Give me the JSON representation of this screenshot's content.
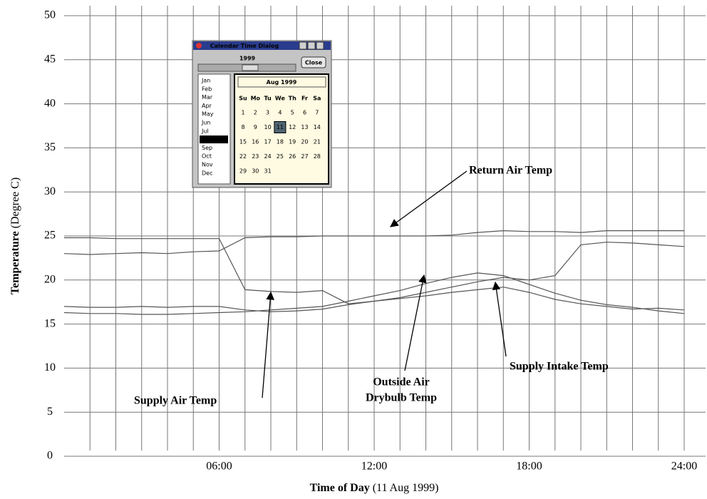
{
  "chart_data": {
    "type": "line",
    "xlabel": {
      "main": "Time of Day",
      "detail": "(11 Aug 1999)"
    },
    "ylabel": {
      "main": "Temperature",
      "detail": "(Degree C)"
    },
    "x": [
      0,
      1,
      2,
      3,
      4,
      5,
      6,
      7,
      8,
      9,
      10,
      11,
      12,
      13,
      14,
      15,
      16,
      17,
      18,
      19,
      20,
      21,
      22,
      23,
      24
    ],
    "xlim": [
      0,
      24
    ],
    "xticks": [
      {
        "value": 6,
        "label": "06:00"
      },
      {
        "value": 12,
        "label": "12:00"
      },
      {
        "value": 18,
        "label": "18:00"
      },
      {
        "value": 24,
        "label": "24:00"
      }
    ],
    "x_grid": [
      1,
      2,
      3,
      4,
      5,
      6,
      7,
      8,
      9,
      10,
      11,
      12,
      13,
      14,
      15,
      16,
      17,
      18,
      19,
      20,
      21,
      22,
      23,
      24
    ],
    "ylim": [
      0,
      50
    ],
    "yticks": [
      0,
      5,
      10,
      15,
      20,
      25,
      30,
      35,
      40,
      45,
      50
    ],
    "grid": true,
    "series": [
      {
        "name": "Return Air Temp",
        "color": "#555555",
        "values": [
          23.0,
          22.9,
          23.0,
          23.1,
          23.0,
          23.2,
          23.3,
          24.8,
          24.9,
          24.9,
          25.0,
          25.0,
          25.0,
          25.0,
          25.0,
          25.1,
          25.4,
          25.6,
          25.5,
          25.5,
          25.4,
          25.6,
          25.6,
          25.6,
          25.6
        ]
      },
      {
        "name": "Supply Air Temp",
        "color": "#555555",
        "values": [
          24.8,
          24.8,
          24.7,
          24.7,
          24.7,
          24.7,
          24.7,
          18.9,
          18.7,
          18.6,
          18.8,
          17.3,
          17.6,
          18.0,
          18.6,
          19.2,
          19.8,
          20.3,
          20.0,
          20.5,
          24.0,
          24.3,
          24.2,
          24.0,
          23.8
        ]
      },
      {
        "name": "Outside Air Drybulb Temp",
        "color": "#555555",
        "values": [
          16.3,
          16.2,
          16.2,
          16.1,
          16.1,
          16.2,
          16.3,
          16.4,
          16.6,
          16.8,
          17.0,
          17.6,
          18.2,
          18.8,
          19.6,
          20.3,
          20.8,
          20.5,
          19.5,
          18.5,
          17.7,
          17.2,
          16.9,
          16.5,
          16.2
        ]
      },
      {
        "name": "Supply Intake Temp",
        "color": "#555555",
        "values": [
          17.0,
          16.9,
          16.9,
          17.0,
          16.9,
          17.0,
          17.0,
          16.6,
          16.4,
          16.5,
          16.7,
          17.2,
          17.6,
          17.9,
          18.2,
          18.6,
          18.9,
          19.2,
          18.6,
          17.8,
          17.3,
          17.0,
          16.7,
          16.8,
          16.6
        ]
      }
    ],
    "annotations": [
      {
        "text": [
          "Return Air Temp"
        ]
      },
      {
        "text": [
          "Supply Air Temp"
        ]
      },
      {
        "text": [
          "Outside Air",
          "Drybulb Temp"
        ]
      },
      {
        "text": [
          "Supply Intake Temp"
        ]
      }
    ]
  },
  "calendar_dialog": {
    "title": "Calendar Time Dialog",
    "year": "1999",
    "close": "Close",
    "months": [
      "Jan",
      "Feb",
      "Mar",
      "Apr",
      "May",
      "Jun",
      "Jul",
      "Aug",
      "Sep",
      "Oct",
      "Nov",
      "Dec"
    ],
    "selected_month": "Aug",
    "header": "Aug 1999",
    "weekdays": [
      "Su",
      "Mo",
      "Tu",
      "We",
      "Th",
      "Fr",
      "Sa"
    ],
    "days": [
      1,
      2,
      3,
      4,
      5,
      6,
      7,
      8,
      9,
      10,
      11,
      12,
      13,
      14,
      15,
      16,
      17,
      18,
      19,
      20,
      21,
      22,
      23,
      24,
      25,
      26,
      27,
      28,
      29,
      30,
      31
    ],
    "selected_day": 11
  }
}
